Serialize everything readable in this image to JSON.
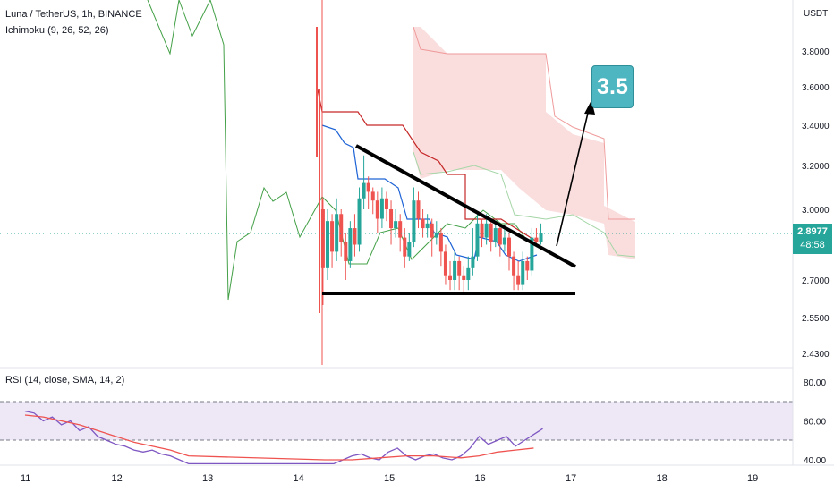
{
  "symbol_label": "Luna / TetherUS, 1h, BINANCE",
  "ichimoku_label": "Ichimoku (9, 26, 52, 26)",
  "rsi_label": "RSI (14, close, SMA, 14, 2)",
  "currency": "USDT",
  "last_price": "2.8977",
  "countdown": "48:58",
  "target_label": "3.5",
  "colors": {
    "up": "#26a69a",
    "down": "#ef5350",
    "cloud": "#f8d3d3",
    "rsi_band": "#ede7f6",
    "target": "#4db6c0"
  },
  "chart_data": [
    {
      "type": "candlestick",
      "title": "Luna / TetherUS, 1h, BINANCE",
      "ylim": [
        2.35,
        4.0
      ],
      "yticks": [
        "3.8000",
        "3.6000",
        "3.4000",
        "3.2000",
        "3.0000",
        "2.8977",
        "2.7000",
        "2.5500",
        "2.4300"
      ],
      "ytick_values": [
        3.8,
        3.6,
        3.4,
        3.2,
        3.0,
        2.8977,
        2.7,
        2.55,
        2.43
      ],
      "x": [
        "11",
        "12",
        "13",
        "14",
        "15",
        "16",
        "17",
        "18",
        "19"
      ],
      "annotations": {
        "triangle_resistance": [
          [
            14.35,
            3.3
          ],
          [
            17.1,
            2.78
          ]
        ],
        "triangle_support": [
          [
            14.3,
            2.64
          ],
          [
            17.1,
            2.64
          ]
        ],
        "target_arrow": [
          [
            16.85,
            2.84
          ],
          [
            17.25,
            3.53
          ]
        ],
        "target": 3.5
      },
      "candles": [
        [
          14.28,
          3.0,
          2.75,
          3.05,
          2.6
        ],
        [
          14.33,
          2.75,
          2.95,
          3.0,
          2.7
        ],
        [
          14.38,
          2.95,
          2.82,
          2.98,
          2.75
        ],
        [
          14.43,
          2.82,
          2.98,
          3.05,
          2.78
        ],
        [
          14.48,
          2.98,
          2.86,
          3.0,
          2.8
        ],
        [
          14.53,
          2.86,
          2.78,
          2.9,
          2.7
        ],
        [
          14.58,
          2.78,
          2.92,
          2.95,
          2.75
        ],
        [
          14.63,
          2.92,
          2.85,
          2.98,
          2.8
        ],
        [
          14.68,
          2.85,
          3.05,
          3.1,
          2.82
        ],
        [
          14.73,
          3.05,
          3.12,
          3.25,
          3.0
        ],
        [
          14.78,
          3.12,
          3.08,
          3.15,
          3.0
        ],
        [
          14.83,
          3.08,
          3.04,
          3.1,
          2.98
        ],
        [
          14.88,
          3.04,
          2.96,
          3.08,
          2.9
        ],
        [
          14.93,
          2.96,
          3.05,
          3.1,
          2.92
        ],
        [
          14.98,
          3.05,
          3.0,
          3.08,
          2.95
        ],
        [
          15.03,
          3.0,
          2.92,
          3.04,
          2.85
        ],
        [
          15.08,
          2.92,
          2.95,
          3.0,
          2.88
        ],
        [
          15.13,
          2.95,
          2.88,
          2.98,
          2.82
        ],
        [
          15.18,
          2.88,
          2.8,
          2.92,
          2.75
        ],
        [
          15.23,
          2.8,
          2.86,
          2.9,
          2.78
        ],
        [
          15.28,
          2.86,
          3.04,
          3.1,
          2.84
        ],
        [
          15.33,
          3.04,
          2.96,
          3.08,
          2.92
        ],
        [
          15.38,
          2.96,
          2.92,
          3.0,
          2.88
        ],
        [
          15.43,
          2.92,
          2.94,
          2.98,
          2.88
        ],
        [
          15.48,
          2.94,
          2.88,
          2.96,
          2.8
        ],
        [
          15.53,
          2.88,
          2.9,
          2.95,
          2.85
        ],
        [
          15.58,
          2.9,
          2.82,
          2.92,
          2.76
        ],
        [
          15.63,
          2.82,
          2.72,
          2.85,
          2.68
        ],
        [
          15.68,
          2.72,
          2.7,
          2.78,
          2.66
        ],
        [
          15.73,
          2.7,
          2.78,
          2.82,
          2.66
        ],
        [
          15.78,
          2.78,
          2.72,
          2.8,
          2.66
        ],
        [
          15.83,
          2.72,
          2.7,
          2.76,
          2.64
        ],
        [
          15.88,
          2.7,
          2.75,
          2.8,
          2.66
        ],
        [
          15.93,
          2.75,
          2.8,
          2.92,
          2.72
        ],
        [
          15.98,
          2.8,
          2.94,
          2.98,
          2.78
        ],
        [
          16.03,
          2.94,
          2.88,
          2.96,
          2.84
        ],
        [
          16.08,
          2.88,
          2.94,
          2.98,
          2.85
        ],
        [
          16.13,
          2.94,
          2.86,
          2.96,
          2.82
        ],
        [
          16.18,
          2.86,
          2.92,
          2.95,
          2.84
        ],
        [
          16.23,
          2.92,
          2.85,
          2.94,
          2.8
        ],
        [
          16.28,
          2.85,
          2.88,
          2.92,
          2.82
        ],
        [
          16.33,
          2.88,
          2.8,
          2.9,
          2.74
        ],
        [
          16.38,
          2.8,
          2.72,
          2.82,
          2.66
        ],
        [
          16.43,
          2.72,
          2.68,
          2.78,
          2.66
        ],
        [
          16.48,
          2.68,
          2.78,
          2.82,
          2.66
        ],
        [
          16.53,
          2.78,
          2.74,
          2.8,
          2.7
        ],
        [
          16.58,
          2.74,
          2.88,
          2.92,
          2.72
        ],
        [
          16.63,
          2.88,
          2.86,
          2.92,
          2.84
        ],
        [
          16.68,
          2.86,
          2.9,
          2.94,
          2.85
        ]
      ]
    },
    {
      "type": "line",
      "title": "RSI (14, close, SMA, 14, 2)",
      "ylim": [
        38,
        85
      ],
      "yticks": [
        "80.00",
        "60.00",
        "40.00"
      ],
      "ytick_values": [
        80,
        60,
        40
      ],
      "bands": [
        70,
        50
      ],
      "series": [
        {
          "color": "#7e57c2",
          "x": [
            11,
            11.1,
            11.2,
            11.3,
            11.4,
            11.5,
            11.6,
            11.7,
            11.8,
            11.9,
            12,
            12.1,
            12.2,
            12.3,
            12.4,
            12.5,
            12.6,
            12.7,
            12.8,
            14.3,
            14.4,
            14.5,
            14.6,
            14.7,
            14.8,
            14.9,
            15,
            15.1,
            15.2,
            15.3,
            15.4,
            15.5,
            15.6,
            15.7,
            15.8,
            15.9,
            16,
            16.1,
            16.2,
            16.3,
            16.4,
            16.5,
            16.6,
            16.7
          ],
          "values": [
            65,
            64,
            60,
            62,
            58,
            60,
            55,
            57,
            52,
            50,
            48,
            47,
            45,
            44,
            45,
            43,
            42,
            40,
            38,
            38,
            38,
            40,
            42,
            43,
            41,
            40,
            44,
            46,
            42,
            40,
            42,
            43,
            41,
            40,
            42,
            46,
            52,
            48,
            50,
            52,
            47,
            50,
            53,
            56
          ]
        },
        {
          "color": "#ef5350",
          "x": [
            11,
            11.2,
            11.4,
            11.6,
            11.8,
            12,
            12.2,
            12.4,
            12.6,
            12.8,
            14.3,
            14.6,
            14.9,
            15.2,
            15.5,
            15.8,
            16,
            16.2,
            16.4,
            16.6
          ],
          "values": [
            63,
            62,
            60,
            58,
            55,
            52,
            49,
            47,
            45,
            42,
            40,
            40,
            41,
            42,
            42,
            41,
            42,
            44,
            45,
            46
          ]
        }
      ]
    }
  ]
}
